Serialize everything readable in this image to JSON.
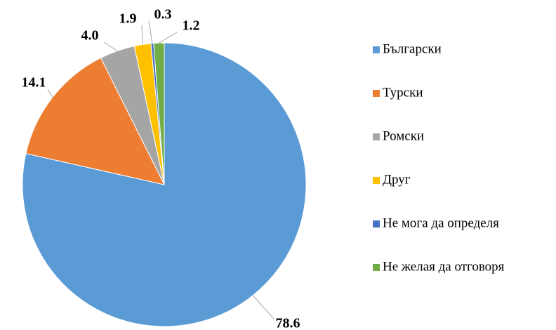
{
  "chart_data": {
    "type": "pie",
    "categories": [
      "Български",
      "Турски",
      "Ромски",
      "Друг",
      "Не мога да определя",
      "Не желая да отговоря"
    ],
    "values": [
      78.6,
      14.1,
      4.0,
      1.9,
      0.3,
      1.2
    ],
    "value_labels": [
      "78.6",
      "14.1",
      "4.0",
      "1.9",
      "0.3",
      "1.2"
    ],
    "colors": [
      "#5b9bd5",
      "#ed7d31",
      "#a5a5a5",
      "#ffc000",
      "#4472c4",
      "#70ad47"
    ],
    "legend": "right"
  }
}
